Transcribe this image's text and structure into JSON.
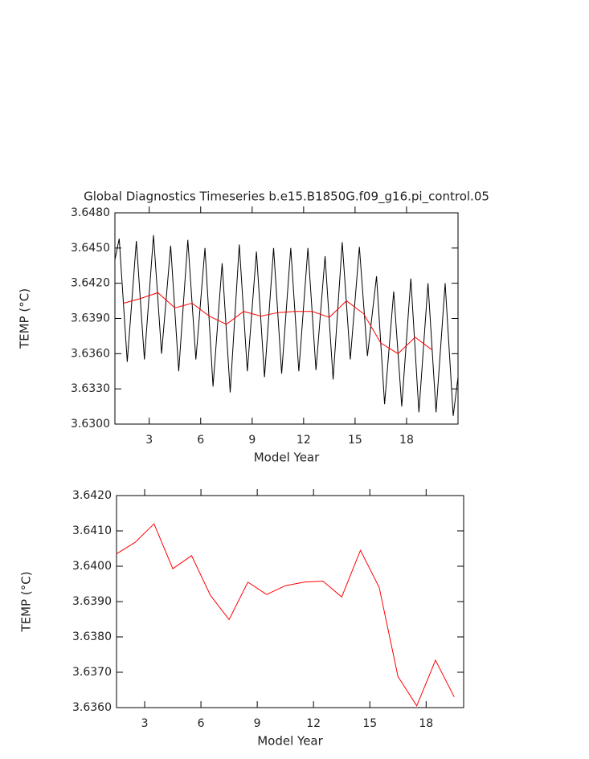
{
  "chart_data": [
    {
      "type": "line",
      "title": "Global Diagnostics Timeseries b.e15.B1850G.f09_g16.pi_control.05",
      "xlabel": "Model Year",
      "ylabel": "TEMP (°C)",
      "xlim": [
        1,
        21
      ],
      "xticks": [
        3,
        6,
        9,
        12,
        15,
        18
      ],
      "ylim": [
        3.63,
        3.648
      ],
      "yticks": [
        {
          "value": 3.63,
          "label": "3.6300"
        },
        {
          "value": 3.633,
          "label": "3.6330"
        },
        {
          "value": 3.636,
          "label": "3.6360"
        },
        {
          "value": 3.639,
          "label": "3.6390"
        },
        {
          "value": 3.642,
          "label": "3.6420"
        },
        {
          "value": 3.645,
          "label": "3.6450"
        },
        {
          "value": 3.648,
          "label": "3.6480"
        }
      ],
      "series": [
        {
          "color": "#000000",
          "x": [
            1.0,
            1.25,
            1.72,
            2.25,
            2.72,
            3.25,
            3.72,
            4.25,
            4.72,
            5.25,
            5.72,
            6.25,
            6.72,
            7.25,
            7.72,
            8.25,
            8.72,
            9.25,
            9.72,
            10.25,
            10.72,
            11.25,
            11.72,
            12.25,
            12.72,
            13.25,
            13.72,
            14.25,
            14.72,
            15.25,
            15.72,
            16.25,
            16.72,
            17.25,
            17.72,
            18.25,
            18.72,
            19.25,
            19.72,
            20.25,
            20.72,
            21.0
          ],
          "values": [
            3.644,
            3.6458,
            3.6353,
            3.6456,
            3.6355,
            3.6461,
            3.636,
            3.6452,
            3.6345,
            3.6457,
            3.6355,
            3.645,
            3.6332,
            3.6437,
            3.6327,
            3.6453,
            3.6345,
            3.6447,
            3.634,
            3.645,
            3.6343,
            3.645,
            3.6345,
            3.645,
            3.6346,
            3.6443,
            3.6338,
            3.6455,
            3.6355,
            3.6451,
            3.6358,
            3.6426,
            3.6317,
            3.6413,
            3.6315,
            3.6424,
            3.631,
            3.642,
            3.631,
            3.642,
            3.6307,
            3.634
          ]
        },
        {
          "color": "#ff0000",
          "x": [
            1.5,
            2.5,
            3.5,
            4.5,
            5.5,
            6.5,
            7.5,
            8.5,
            9.5,
            10.5,
            11.5,
            12.5,
            13.5,
            14.5,
            15.5,
            16.5,
            17.5,
            18.5,
            19.5
          ],
          "values": [
            3.6403,
            3.6407,
            3.6412,
            3.6399,
            3.6403,
            3.6392,
            3.6385,
            3.6396,
            3.6392,
            3.6395,
            3.6396,
            3.6396,
            3.6391,
            3.6405,
            3.6394,
            3.6369,
            3.636,
            3.6374,
            3.6363
          ]
        }
      ]
    },
    {
      "type": "line",
      "xlabel": "Model Year",
      "ylabel": "TEMP (°C)",
      "xlim": [
        1.5,
        20
      ],
      "xticks": [
        3,
        6,
        9,
        12,
        15,
        18
      ],
      "ylim": [
        3.636,
        3.642
      ],
      "yticks": [
        {
          "value": 3.636,
          "label": "3.6360"
        },
        {
          "value": 3.637,
          "label": "3.6370"
        },
        {
          "value": 3.638,
          "label": "3.6380"
        },
        {
          "value": 3.639,
          "label": "3.6390"
        },
        {
          "value": 3.64,
          "label": "3.6400"
        },
        {
          "value": 3.641,
          "label": "3.6410"
        },
        {
          "value": 3.642,
          "label": "3.6420"
        }
      ],
      "series": [
        {
          "color": "#ff0000",
          "x": [
            1.5,
            2.5,
            3.5,
            4.5,
            5.5,
            6.5,
            7.5,
            8.5,
            9.5,
            10.5,
            11.5,
            12.5,
            13.5,
            14.5,
            15.5,
            16.5,
            17.5,
            18.5,
            19.5
          ],
          "values": [
            3.64035,
            3.64068,
            3.6412,
            3.63993,
            3.6403,
            3.63918,
            3.63849,
            3.63955,
            3.6392,
            3.63945,
            3.63955,
            3.63958,
            3.63913,
            3.64045,
            3.6394,
            3.63688,
            3.63605,
            3.63734,
            3.6363
          ]
        }
      ]
    }
  ]
}
